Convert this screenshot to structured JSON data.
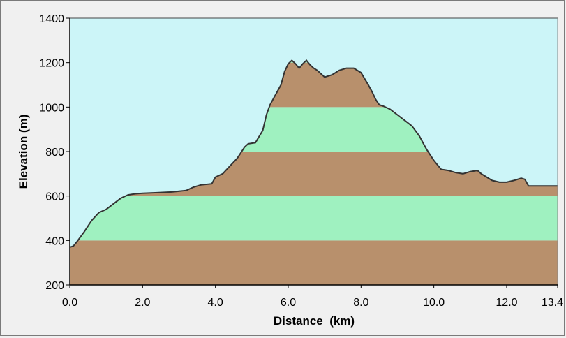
{
  "chart_data": {
    "type": "area",
    "title": "",
    "xlabel": "Distance  (km)",
    "ylabel": "Elevation (m)",
    "xlim": [
      0,
      13.4
    ],
    "ylim": [
      200,
      1400
    ],
    "x_ticks": [
      0,
      2,
      4,
      6,
      8,
      10,
      12,
      13.4
    ],
    "x_tick_labels": [
      "0.0",
      "2.0",
      "4.0",
      "6.0",
      "8.0",
      "10.0",
      "12.0",
      "13.4"
    ],
    "y_ticks": [
      200,
      400,
      600,
      800,
      1000,
      1200,
      1400
    ],
    "y_tick_labels": [
      "200",
      "400",
      "600",
      "800",
      "1000",
      "1200",
      "1400"
    ],
    "grid": false,
    "legend": "none",
    "band_size_m": 200,
    "colors": {
      "sky": "#ccf5f8",
      "band_brown": "#b8906c",
      "band_green": "#9ff1c0",
      "outline": "#333333"
    },
    "series": [
      {
        "x": [
          0,
          0.1,
          0.2,
          0.4,
          0.6,
          0.8,
          1.0,
          1.2,
          1.4,
          1.6,
          1.8,
          2.0,
          2.4,
          2.8,
          3.2,
          3.4,
          3.6,
          3.9,
          4.0,
          4.2,
          4.4,
          4.6,
          4.8,
          4.9,
          5.1,
          5.3,
          5.4,
          5.5,
          5.6,
          5.8,
          5.9,
          6.0,
          6.1,
          6.2,
          6.3,
          6.4,
          6.5,
          6.6,
          6.7,
          6.8,
          6.9,
          7.0,
          7.2,
          7.4,
          7.6,
          7.8,
          8.0,
          8.2,
          8.3,
          8.4,
          8.5,
          8.6,
          8.8,
          9.0,
          9.2,
          9.4,
          9.6,
          9.8,
          10.0,
          10.2,
          10.4,
          10.6,
          10.8,
          11.0,
          11.2,
          11.3,
          11.4,
          11.6,
          11.8,
          12.0,
          12.2,
          12.4,
          12.5,
          12.6,
          12.8,
          13.0,
          13.2,
          13.4
        ],
        "y": [
          370,
          375,
          395,
          440,
          490,
          525,
          540,
          565,
          590,
          605,
          610,
          612,
          615,
          618,
          625,
          640,
          650,
          655,
          685,
          700,
          735,
          770,
          820,
          835,
          840,
          895,
          965,
          1010,
          1040,
          1100,
          1160,
          1195,
          1210,
          1195,
          1175,
          1195,
          1210,
          1190,
          1175,
          1165,
          1150,
          1135,
          1145,
          1165,
          1175,
          1175,
          1155,
          1100,
          1070,
          1035,
          1010,
          1005,
          990,
          965,
          940,
          915,
          870,
          810,
          760,
          720,
          715,
          705,
          700,
          710,
          715,
          700,
          690,
          670,
          662,
          662,
          670,
          680,
          675,
          645,
          645,
          645,
          645,
          645
        ]
      }
    ]
  }
}
